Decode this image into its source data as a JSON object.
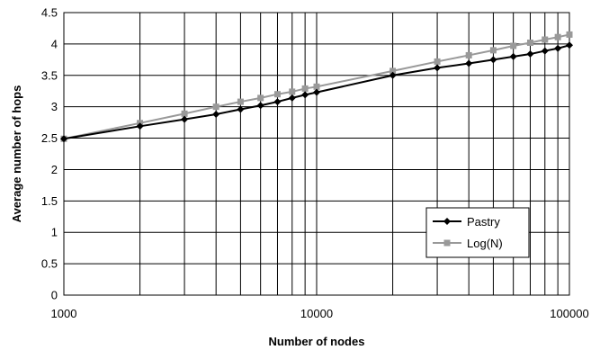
{
  "chart_data": {
    "type": "line",
    "xscale": "log",
    "xlim": [
      1000,
      100000
    ],
    "ylim": [
      0,
      4.5
    ],
    "xlabel": "Number of nodes",
    "ylabel": "Average number of hops",
    "x_tick_labels": [
      "1000",
      "10000",
      "100000"
    ],
    "y_tick_labels": [
      "0",
      "0.5",
      "1",
      "1.5",
      "2",
      "2.5",
      "3",
      "3.5",
      "4",
      "4.5"
    ],
    "grid": true,
    "legend": "bottom-right",
    "series": [
      {
        "name": "Pastry",
        "color": "#000000",
        "marker": "diamond",
        "x": [
          1000,
          2000,
          3000,
          4000,
          5000,
          6000,
          7000,
          8000,
          9000,
          10000,
          20000,
          30000,
          40000,
          50000,
          60000,
          70000,
          80000,
          90000,
          100000
        ],
        "y": [
          2.49,
          2.69,
          2.8,
          2.88,
          2.96,
          3.02,
          3.08,
          3.14,
          3.19,
          3.23,
          3.5,
          3.62,
          3.69,
          3.75,
          3.8,
          3.84,
          3.89,
          3.93,
          3.98
        ]
      },
      {
        "name": "Log(N)",
        "color": "#999999",
        "marker": "square",
        "x": [
          1000,
          2000,
          3000,
          4000,
          5000,
          6000,
          7000,
          8000,
          9000,
          10000,
          20000,
          30000,
          40000,
          50000,
          60000,
          70000,
          80000,
          90000,
          100000
        ],
        "y": [
          2.49,
          2.74,
          2.89,
          3.0,
          3.08,
          3.14,
          3.2,
          3.24,
          3.29,
          3.32,
          3.57,
          3.72,
          3.82,
          3.9,
          3.97,
          4.02,
          4.07,
          4.11,
          4.15
        ]
      }
    ]
  }
}
